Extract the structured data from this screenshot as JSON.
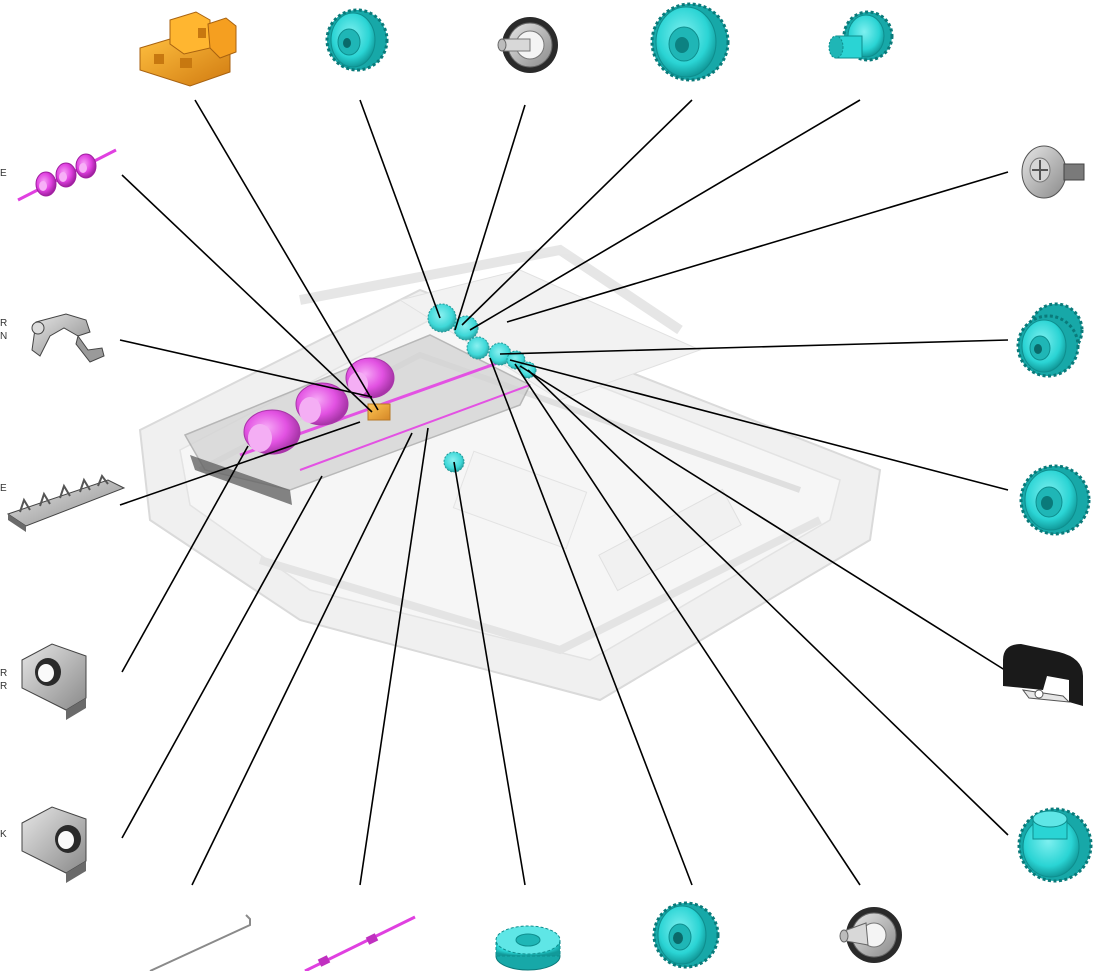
{
  "diagram": {
    "edge_labels": [
      "E",
      "R",
      "N",
      "E",
      "R",
      "R",
      "K"
    ],
    "colors": {
      "line": "#000000",
      "cyan_gear": "#2ad4d4",
      "cyan_dark": "#14a0a0",
      "magenta": "#e040e0",
      "magenta_dark": "#b020b0",
      "orange": "#f0a020",
      "orange_dark": "#c07810",
      "gray": "#b0b0b0",
      "dark": "#1a1a1a",
      "assembly": "#e8e8e8"
    },
    "parts": [
      {
        "id": "orange-bracket",
        "icon": "orange-bracket-icon"
      },
      {
        "id": "gear-1",
        "icon": "cyan-gear-icon"
      },
      {
        "id": "shaft-bushing-1",
        "icon": "gray-bushing-icon"
      },
      {
        "id": "gear-large",
        "icon": "cyan-gear-icon"
      },
      {
        "id": "gear-small-stack",
        "icon": "cyan-gear-icon"
      },
      {
        "id": "pickup-roller-shaft",
        "icon": "magenta-roller-shaft-icon"
      },
      {
        "id": "screw",
        "icon": "gray-screw-icon"
      },
      {
        "id": "lever-arm",
        "icon": "gray-lever-icon"
      },
      {
        "id": "double-gear",
        "icon": "cyan-gear-icon"
      },
      {
        "id": "guide-plate",
        "icon": "gray-guide-plate-icon"
      },
      {
        "id": "gear-medium",
        "icon": "cyan-gear-icon"
      },
      {
        "id": "bushing-left-1",
        "icon": "gray-bushing-block-icon"
      },
      {
        "id": "black-bracket",
        "icon": "black-bracket-icon"
      },
      {
        "id": "bushing-left-2",
        "icon": "gray-bushing-block-icon"
      },
      {
        "id": "gear-bottom-right",
        "icon": "cyan-gear-icon"
      },
      {
        "id": "wire-rod",
        "icon": "gray-wire-icon"
      },
      {
        "id": "magenta-shaft",
        "icon": "magenta-shaft-icon"
      },
      {
        "id": "gear-flat",
        "icon": "cyan-gear-icon"
      },
      {
        "id": "gear-bottom",
        "icon": "cyan-gear-icon"
      },
      {
        "id": "shaft-bushing-2",
        "icon": "gray-bushing-icon"
      }
    ]
  }
}
